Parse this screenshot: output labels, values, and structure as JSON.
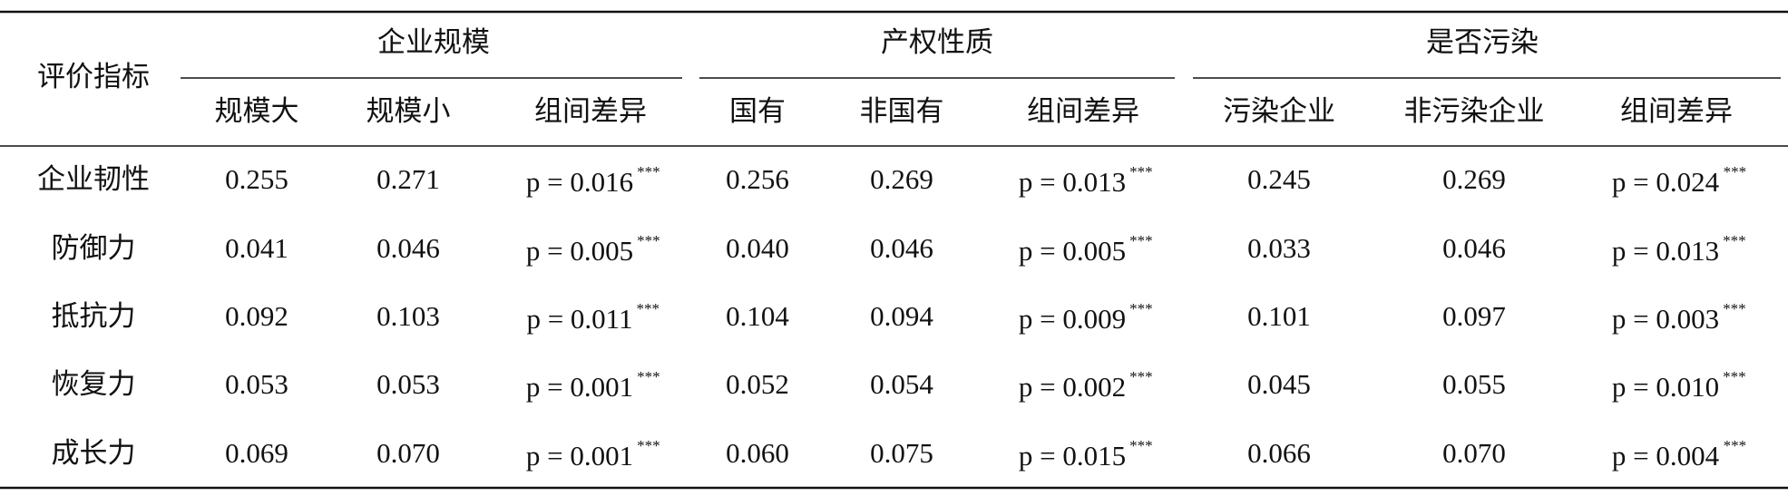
{
  "table": {
    "corner": "评价指标",
    "groups": [
      {
        "title": "企业规模",
        "columns": [
          "规模大",
          "规模小",
          "组间差异"
        ]
      },
      {
        "title": "产权性质",
        "columns": [
          "国有",
          "非国有",
          "组间差异"
        ]
      },
      {
        "title": "是否污染",
        "columns": [
          "污染企业",
          "非污染企业",
          "组间差异"
        ]
      }
    ],
    "rows": [
      {
        "label": "企业韧性",
        "cells": [
          "0.255",
          "0.271",
          {
            "p": "p = 0.016",
            "sig": "***"
          },
          "0.256",
          "0.269",
          {
            "p": "p = 0.013",
            "sig": "***"
          },
          "0.245",
          "0.269",
          {
            "p": "p = 0.024",
            "sig": "***"
          }
        ]
      },
      {
        "label": "防御力",
        "cells": [
          "0.041",
          "0.046",
          {
            "p": "p = 0.005",
            "sig": "***"
          },
          "0.040",
          "0.046",
          {
            "p": "p = 0.005",
            "sig": "***"
          },
          "0.033",
          "0.046",
          {
            "p": "p = 0.013",
            "sig": "***"
          }
        ]
      },
      {
        "label": "抵抗力",
        "cells": [
          "0.092",
          "0.103",
          {
            "p": "p = 0.011",
            "sig": "***"
          },
          "0.104",
          "0.094",
          {
            "p": "p = 0.009",
            "sig": "***"
          },
          "0.101",
          "0.097",
          {
            "p": "p = 0.003",
            "sig": "***"
          }
        ]
      },
      {
        "label": "恢复力",
        "cells": [
          "0.053",
          "0.053",
          {
            "p": "p = 0.001",
            "sig": "***"
          },
          "0.052",
          "0.054",
          {
            "p": "p = 0.002",
            "sig": "***"
          },
          "0.045",
          "0.055",
          {
            "p": "p = 0.010",
            "sig": "***"
          }
        ]
      },
      {
        "label": "成长力",
        "cells": [
          "0.069",
          "0.070",
          {
            "p": "p = 0.001",
            "sig": "***"
          },
          "0.060",
          "0.075",
          {
            "p": "p = 0.015",
            "sig": "***"
          },
          "0.066",
          "0.070",
          {
            "p": "p = 0.004",
            "sig": "***"
          }
        ]
      }
    ]
  }
}
